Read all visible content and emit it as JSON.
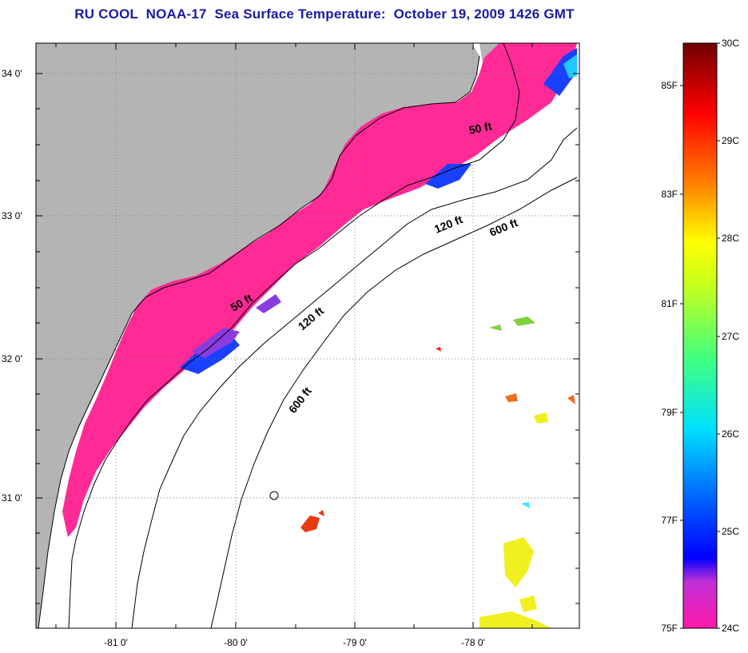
{
  "title": "RU COOL  NOAA-17  Sea Surface Temperature:  October 19, 2009 1426 GMT",
  "map": {
    "lat_labels": [
      "34 0'",
      "33 0'",
      "32 0'",
      "31 0'"
    ],
    "lon_labels": [
      "-81 0'",
      "-80 0'",
      "-79 0'",
      "-78 0'"
    ],
    "contour_labels": [
      "50 ft",
      "50 ft",
      "120 ft",
      "120 ft",
      "600 ft",
      "600 ft"
    ]
  },
  "colorbar": {
    "fahrenheit_labels": [
      "85F",
      "83F",
      "81F",
      "79F",
      "77F",
      "75F"
    ],
    "celsius_labels": [
      "30C",
      "29C",
      "28C",
      "27C",
      "26C",
      "25C",
      "24C"
    ],
    "colors": [
      "#7a0000",
      "#ff0000",
      "#ff8000",
      "#ffff00",
      "#00ff80",
      "#00ffff",
      "#0080ff",
      "#0000ff",
      "#ff1aa0"
    ]
  },
  "colors": {
    "land": "#b4b4b4",
    "warm_water": "#ff2a96",
    "title": "#1a1aa6"
  }
}
